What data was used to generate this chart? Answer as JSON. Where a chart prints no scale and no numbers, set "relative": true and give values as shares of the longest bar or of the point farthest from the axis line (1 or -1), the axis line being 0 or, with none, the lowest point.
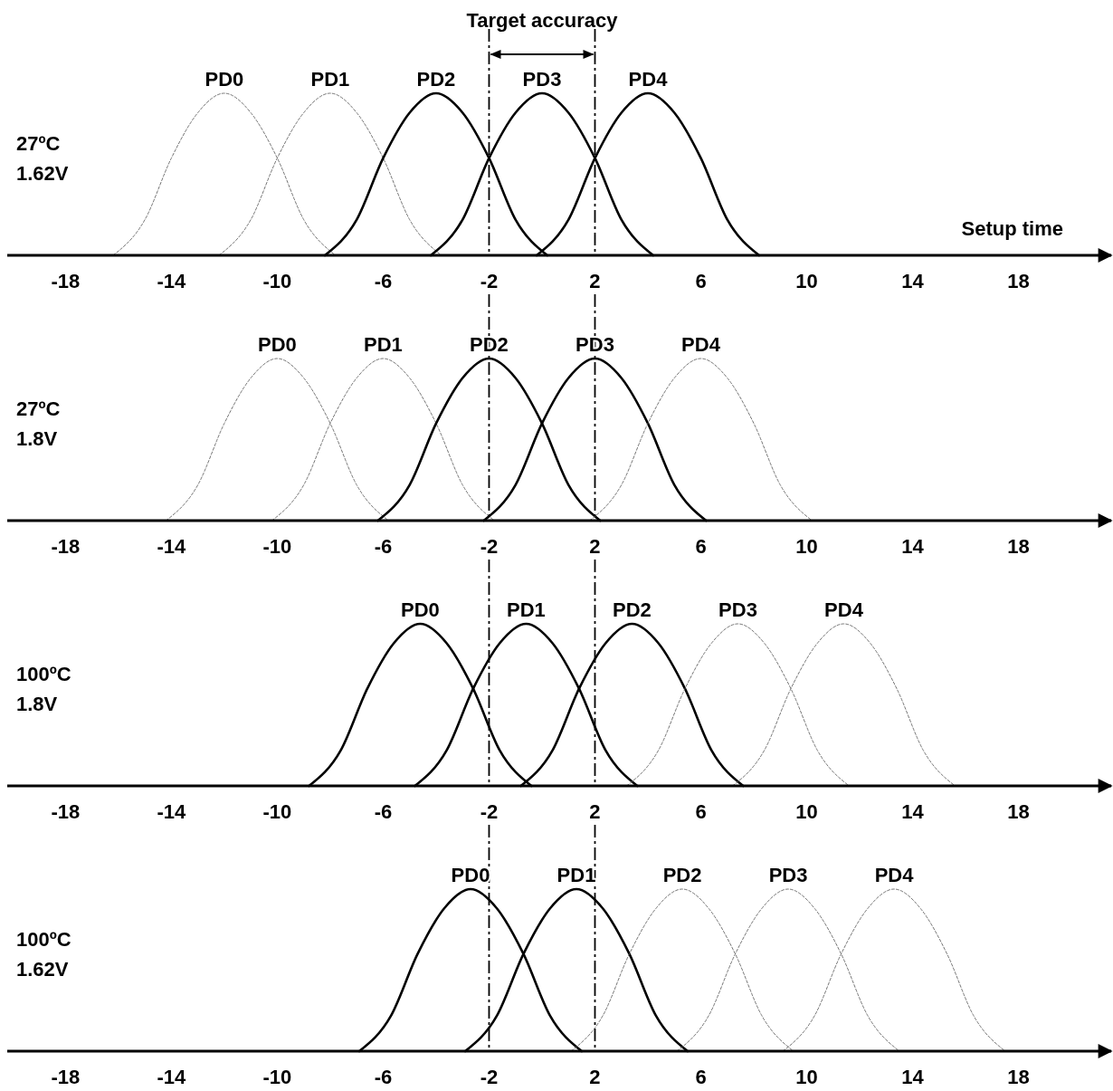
{
  "chart_data": [
    {
      "type": "line",
      "relative": true,
      "title": "27ºC",
      "subtitle": "1.62V",
      "xlabel": "Setup time",
      "annotations": [
        "Target accuracy"
      ],
      "xlim": [
        -20.2,
        21.5
      ],
      "xticks": [
        -18,
        -14,
        -10,
        -6,
        -2,
        2,
        6,
        10,
        14,
        18
      ],
      "ref_lines": [
        {
          "axis": "x",
          "value": -2,
          "line_style": "dashed",
          "color": "#000000"
        },
        {
          "axis": "x",
          "value": 2,
          "line_style": "dashed",
          "color": "#000000"
        }
      ],
      "series": [
        {
          "name": "PD0",
          "color": "#666666",
          "line_style": "dotted",
          "x": [
            -16.2,
            -15,
            -14,
            -13,
            -12,
            -11,
            -10,
            -9,
            -7.8
          ],
          "values": [
            0,
            0.22,
            0.6,
            0.88,
            1,
            0.88,
            0.6,
            0.22,
            0
          ]
        },
        {
          "name": "PD1",
          "color": "#666666",
          "line_style": "dotted",
          "x": [
            -12.2,
            -11,
            -10,
            -9,
            -8,
            -7,
            -6,
            -5,
            -3.8
          ],
          "values": [
            0,
            0.22,
            0.6,
            0.88,
            1,
            0.88,
            0.6,
            0.22,
            0
          ]
        },
        {
          "name": "PD2",
          "color": "#000000",
          "line_style": "solid",
          "x": [
            -8.2,
            -7,
            -6,
            -5,
            -4,
            -3,
            -2,
            -1,
            0.2
          ],
          "values": [
            0,
            0.22,
            0.6,
            0.88,
            1,
            0.88,
            0.6,
            0.22,
            0
          ]
        },
        {
          "name": "PD3",
          "color": "#000000",
          "line_style": "solid",
          "x": [
            -4.2,
            -3,
            -2,
            -1,
            0,
            1,
            2,
            3,
            4.2
          ],
          "values": [
            0,
            0.22,
            0.6,
            0.88,
            1,
            0.88,
            0.6,
            0.22,
            0
          ]
        },
        {
          "name": "PD4",
          "color": "#000000",
          "line_style": "solid",
          "x": [
            -0.2,
            1,
            2,
            3,
            4,
            5,
            6,
            7,
            8.2
          ],
          "values": [
            0,
            0.22,
            0.6,
            0.88,
            1,
            0.88,
            0.6,
            0.22,
            0
          ]
        }
      ]
    },
    {
      "type": "line",
      "relative": true,
      "title": "27ºC",
      "subtitle": "1.8V",
      "xlim": [
        -20.2,
        21.5
      ],
      "xticks": [
        -18,
        -14,
        -10,
        -6,
        -2,
        2,
        6,
        10,
        14,
        18
      ],
      "ref_lines": [
        {
          "axis": "x",
          "value": -2,
          "line_style": "dashed",
          "color": "#000000"
        },
        {
          "axis": "x",
          "value": 2,
          "line_style": "dashed",
          "color": "#000000"
        }
      ],
      "series": [
        {
          "name": "PD0",
          "color": "#666666",
          "line_style": "dotted",
          "x": [
            -14.2,
            -13,
            -12,
            -11,
            -10,
            -9,
            -8,
            -7,
            -5.8
          ],
          "values": [
            0,
            0.22,
            0.6,
            0.88,
            1,
            0.88,
            0.6,
            0.22,
            0
          ]
        },
        {
          "name": "PD1",
          "color": "#666666",
          "line_style": "dotted",
          "x": [
            -10.2,
            -9,
            -8,
            -7,
            -6,
            -5,
            -4,
            -3,
            -1.8
          ],
          "values": [
            0,
            0.22,
            0.6,
            0.88,
            1,
            0.88,
            0.6,
            0.22,
            0
          ]
        },
        {
          "name": "PD2",
          "color": "#000000",
          "line_style": "solid",
          "x": [
            -6.2,
            -5,
            -4,
            -3,
            -2,
            -1,
            0,
            1,
            2.2
          ],
          "values": [
            0,
            0.22,
            0.6,
            0.88,
            1,
            0.88,
            0.6,
            0.22,
            0
          ]
        },
        {
          "name": "PD3",
          "color": "#000000",
          "line_style": "solid",
          "x": [
            -2.2,
            -1,
            0,
            1,
            2,
            3,
            4,
            5,
            6.2
          ],
          "values": [
            0,
            0.22,
            0.6,
            0.88,
            1,
            0.88,
            0.6,
            0.22,
            0
          ]
        },
        {
          "name": "PD4",
          "color": "#666666",
          "line_style": "dotted",
          "x": [
            1.8,
            3,
            4,
            5,
            6,
            7,
            8,
            9,
            10.2
          ],
          "values": [
            0,
            0.22,
            0.6,
            0.88,
            1,
            0.88,
            0.6,
            0.22,
            0
          ]
        }
      ]
    },
    {
      "type": "line",
      "relative": true,
      "title": "100ºC",
      "subtitle": "1.8V",
      "xlim": [
        -20.2,
        21.5
      ],
      "xticks": [
        -18,
        -14,
        -10,
        -6,
        -2,
        2,
        6,
        10,
        14,
        18
      ],
      "ref_lines": [
        {
          "axis": "x",
          "value": -2,
          "line_style": "dashed",
          "color": "#000000"
        },
        {
          "axis": "x",
          "value": 2,
          "line_style": "dashed",
          "color": "#000000"
        }
      ],
      "series": [
        {
          "name": "PD0",
          "color": "#000000",
          "line_style": "solid",
          "x": [
            -8.8,
            -7.6,
            -6.6,
            -5.6,
            -4.6,
            -3.6,
            -2.6,
            -1.6,
            -0.4
          ],
          "values": [
            0,
            0.22,
            0.6,
            0.88,
            1,
            0.88,
            0.6,
            0.22,
            0
          ]
        },
        {
          "name": "PD1",
          "color": "#000000",
          "line_style": "solid",
          "x": [
            -4.8,
            -3.6,
            -2.6,
            -1.6,
            -0.6,
            0.4,
            1.4,
            2.4,
            3.6
          ],
          "values": [
            0,
            0.22,
            0.6,
            0.88,
            1,
            0.88,
            0.6,
            0.22,
            0
          ]
        },
        {
          "name": "PD2",
          "color": "#000000",
          "line_style": "solid",
          "x": [
            -0.8,
            0.4,
            1.4,
            2.4,
            3.4,
            4.4,
            5.4,
            6.4,
            7.6
          ],
          "values": [
            0,
            0.22,
            0.6,
            0.88,
            1,
            0.88,
            0.6,
            0.22,
            0
          ]
        },
        {
          "name": "PD3",
          "color": "#666666",
          "line_style": "dotted",
          "x": [
            3.2,
            4.4,
            5.4,
            6.4,
            7.4,
            8.4,
            9.4,
            10.4,
            11.6
          ],
          "values": [
            0,
            0.22,
            0.6,
            0.88,
            1,
            0.88,
            0.6,
            0.22,
            0
          ]
        },
        {
          "name": "PD4",
          "color": "#666666",
          "line_style": "dotted",
          "x": [
            7.2,
            8.4,
            9.4,
            10.4,
            11.4,
            12.4,
            13.4,
            14.4,
            15.6
          ],
          "values": [
            0,
            0.22,
            0.6,
            0.88,
            1,
            0.88,
            0.6,
            0.22,
            0
          ]
        }
      ]
    },
    {
      "type": "line",
      "relative": true,
      "title": "100ºC",
      "subtitle": "1.62V",
      "xlim": [
        -20.2,
        21.5
      ],
      "xticks": [
        -18,
        -14,
        -10,
        -6,
        -2,
        2,
        6,
        10,
        14,
        18
      ],
      "ref_lines": [
        {
          "axis": "x",
          "value": -2,
          "line_style": "dashed",
          "color": "#000000"
        },
        {
          "axis": "x",
          "value": 2,
          "line_style": "dashed",
          "color": "#000000"
        }
      ],
      "series": [
        {
          "name": "PD0",
          "color": "#000000",
          "line_style": "solid",
          "x": [
            -6.9,
            -5.7,
            -4.7,
            -3.7,
            -2.7,
            -1.7,
            -0.7,
            0.3,
            1.5
          ],
          "values": [
            0,
            0.22,
            0.6,
            0.88,
            1,
            0.88,
            0.6,
            0.22,
            0
          ]
        },
        {
          "name": "PD1",
          "color": "#000000",
          "line_style": "solid",
          "x": [
            -2.9,
            -1.7,
            -0.7,
            0.3,
            1.3,
            2.3,
            3.3,
            4.3,
            5.5
          ],
          "values": [
            0,
            0.22,
            0.6,
            0.88,
            1,
            0.88,
            0.6,
            0.22,
            0
          ]
        },
        {
          "name": "PD2",
          "color": "#666666",
          "line_style": "dotted",
          "x": [
            1.1,
            2.3,
            3.3,
            4.3,
            5.3,
            6.3,
            7.3,
            8.3,
            9.5
          ],
          "values": [
            0,
            0.22,
            0.6,
            0.88,
            1,
            0.88,
            0.6,
            0.22,
            0
          ]
        },
        {
          "name": "PD3",
          "color": "#666666",
          "line_style": "dotted",
          "x": [
            5.1,
            6.3,
            7.3,
            8.3,
            9.3,
            10.3,
            11.3,
            12.3,
            13.5
          ],
          "values": [
            0,
            0.22,
            0.6,
            0.88,
            1,
            0.88,
            0.6,
            0.22,
            0
          ]
        },
        {
          "name": "PD4",
          "color": "#666666",
          "line_style": "dotted",
          "x": [
            9.1,
            10.3,
            11.3,
            12.3,
            13.3,
            14.3,
            15.3,
            16.3,
            17.5
          ],
          "values": [
            0,
            0.22,
            0.6,
            0.88,
            1,
            0.88,
            0.6,
            0.22,
            0
          ]
        }
      ]
    }
  ]
}
